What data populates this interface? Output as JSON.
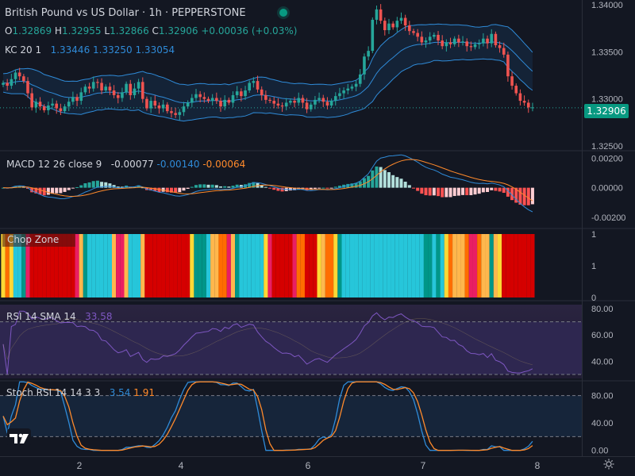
{
  "header": {
    "title": "British Pound vs US Dollar · 1h · PEPPERSTONE",
    "ohlc": [
      {
        "k": "O",
        "v": "1.32869"
      },
      {
        "k": "H",
        "v": "1.32955"
      },
      {
        "k": "L",
        "v": "1.32866"
      },
      {
        "k": "C",
        "v": "1.32906"
      }
    ],
    "change": "+0.00036 (+0.03%)",
    "status_color": "#089981"
  },
  "indicators": {
    "kc": {
      "label": "KC 20 1",
      "upper": "1.33446",
      "mid": "1.33250",
      "lower": "1.33054"
    },
    "macd": {
      "label": "MACD 12 26 close 9",
      "hist": "-0.00077",
      "macd": "-0.00140",
      "signal": "-0.00064"
    },
    "chop": {
      "label": "Chop Zone"
    },
    "rsi": {
      "label": "RSI 14 SMA 14",
      "value": "33.58"
    },
    "stoch": {
      "label": "Stoch RSI 14 14 3 3",
      "k": "3.54",
      "d": "1.91"
    }
  },
  "price_tag": "1.32906",
  "colors": {
    "up": "#26a69a",
    "down": "#ef5350",
    "band": "#2f8bd8",
    "orange": "#ff8a2b",
    "rsi": "#7e57c2",
    "bg": "#131722"
  },
  "chart_data": {
    "type": "candlestick",
    "title": "British Pound vs US Dollar · 1h · PEPPERSTONE",
    "x_ticks": [
      "2",
      "4",
      "6",
      "7",
      "8"
    ],
    "y_ticks": {
      "price": [
        "1.34000",
        "1.33500",
        "1.33000",
        "1.32500"
      ],
      "macd": [
        "0.00200",
        "0.00000",
        "-0.00200"
      ],
      "chop": [
        "1",
        "1",
        "0"
      ],
      "rsi": [
        "80.00",
        "60.00",
        "40.00"
      ],
      "stoch": [
        "80.00",
        "40.00",
        "0.00"
      ]
    },
    "price_range": [
      1.3245,
      1.3405
    ],
    "macd_range": [
      -0.0026,
      0.0024
    ],
    "rsi_range": [
      27,
      83
    ],
    "stoch_range": [
      -5,
      97
    ],
    "rsi_levels": [
      70,
      30
    ],
    "stoch_levels": [
      80,
      20
    ],
    "last_close": 1.32906,
    "close": [
      1.3317,
      1.3314,
      1.3321,
      1.3328,
      1.3324,
      1.3319,
      1.3306,
      1.3291,
      1.3297,
      1.3292,
      1.3288,
      1.3293,
      1.3295,
      1.329,
      1.3287,
      1.3292,
      1.3297,
      1.3302,
      1.3298,
      1.3307,
      1.3313,
      1.3311,
      1.3318,
      1.3317,
      1.3309,
      1.3313,
      1.3309,
      1.3304,
      1.3301,
      1.3307,
      1.3316,
      1.3304,
      1.3311,
      1.3318,
      1.33,
      1.329,
      1.3298,
      1.3293,
      1.329,
      1.3294,
      1.3287,
      1.3285,
      1.3283,
      1.3286,
      1.3292,
      1.3296,
      1.3301,
      1.3305,
      1.3302,
      1.33,
      1.3298,
      1.3301,
      1.3298,
      1.3292,
      1.3299,
      1.3296,
      1.3304,
      1.3308,
      1.3303,
      1.3309,
      1.3317,
      1.3319,
      1.331,
      1.3304,
      1.3299,
      1.3298,
      1.3295,
      1.3293,
      1.3292,
      1.3296,
      1.3298,
      1.3296,
      1.3301,
      1.3296,
      1.3289,
      1.3294,
      1.3299,
      1.3301,
      1.3297,
      1.3293,
      1.3298,
      1.3303,
      1.3306,
      1.3309,
      1.3311,
      1.3313,
      1.3316,
      1.3326,
      1.3345,
      1.3351,
      1.3384,
      1.3395,
      1.3383,
      1.3373,
      1.338,
      1.3376,
      1.3383,
      1.3386,
      1.3378,
      1.3372,
      1.337,
      1.3366,
      1.336,
      1.3362,
      1.3366,
      1.3368,
      1.3362,
      1.3356,
      1.336,
      1.3358,
      1.3364,
      1.336,
      1.3361,
      1.3356,
      1.3355,
      1.3358,
      1.3359,
      1.3364,
      1.3359,
      1.3369,
      1.3357,
      1.3354,
      1.3347,
      1.3324,
      1.3314,
      1.3306,
      1.3298,
      1.3296,
      1.3291,
      1.3291
    ]
  }
}
